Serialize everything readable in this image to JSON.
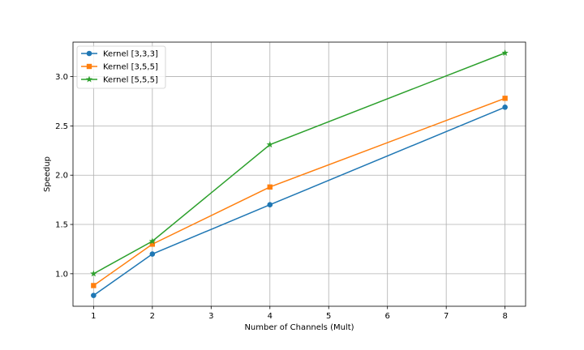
{
  "chart_data": {
    "type": "line",
    "title": "",
    "xlabel": "Number of Channels (Mult)",
    "ylabel": "Speedup",
    "x": [
      1,
      2,
      4,
      8
    ],
    "xlim": [
      0.65,
      8.35
    ],
    "ylim": [
      0.67,
      3.35
    ],
    "xticks": [
      "1",
      "2",
      "3",
      "4",
      "5",
      "6",
      "7",
      "8"
    ],
    "yticks": [
      "1.0",
      "1.5",
      "2.0",
      "2.5",
      "3.0"
    ],
    "grid": true,
    "legend_position": "top-left",
    "series": [
      {
        "name": "Kernel [3,3,3]",
        "values": [
          0.78,
          1.2,
          1.7,
          2.69
        ],
        "color": "#1f77b4",
        "marker": "circle"
      },
      {
        "name": "Kernel [3,5,5]",
        "values": [
          0.88,
          1.3,
          1.88,
          2.78
        ],
        "color": "#ff7f0e",
        "marker": "square"
      },
      {
        "name": "Kernel [5,5,5]",
        "values": [
          1.0,
          1.33,
          2.31,
          3.24
        ],
        "color": "#2ca02c",
        "marker": "star"
      }
    ]
  }
}
